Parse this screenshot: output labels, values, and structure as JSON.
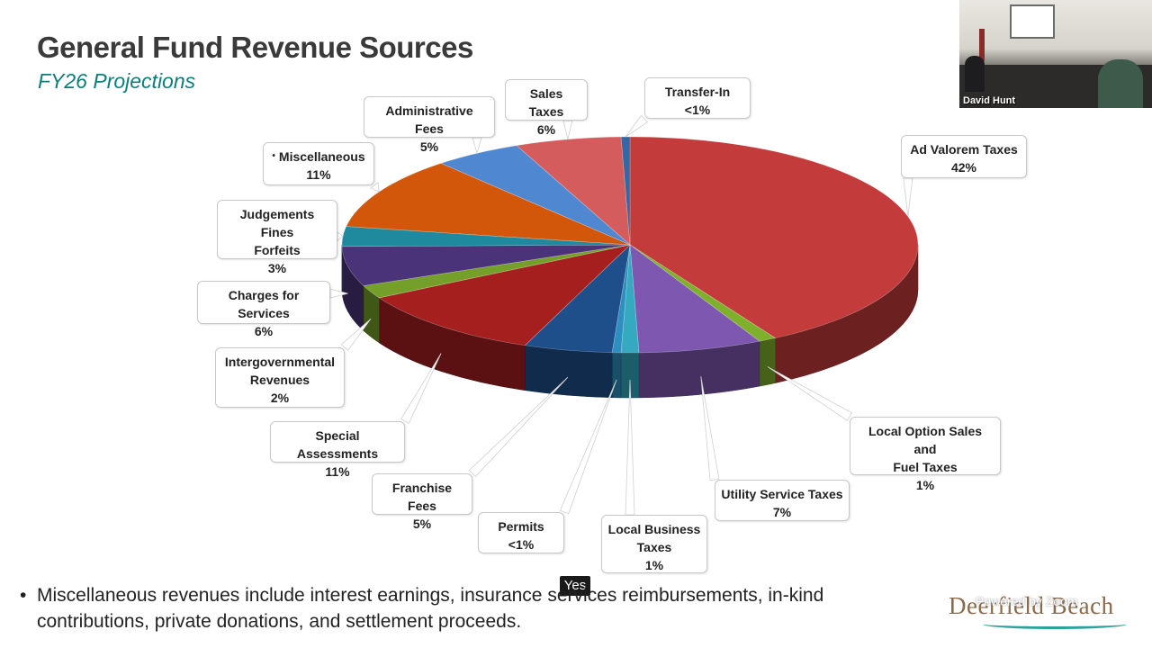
{
  "slide": {
    "title": "General Fund Revenue Sources",
    "subtitle": "FY26 Projections"
  },
  "chart_data": {
    "type": "pie",
    "style": "3d-exploded",
    "slices": [
      {
        "label": "Ad Valorem Taxes",
        "label_lines": [
          "Ad Valorem Taxes"
        ],
        "value": 42,
        "display": "42%",
        "color": "#c43b3b"
      },
      {
        "label": "Local Option Sales and Fuel Taxes",
        "label_lines": [
          "Local Option Sales and",
          "Fuel Taxes"
        ],
        "value": 1,
        "display": "1%",
        "color": "#7fb02c"
      },
      {
        "label": "Utility Service Taxes",
        "label_lines": [
          "Utility Service Taxes"
        ],
        "value": 7,
        "display": "7%",
        "color": "#7d57b0"
      },
      {
        "label": "Local Business Taxes",
        "label_lines": [
          "Local Business",
          "Taxes"
        ],
        "value": 1,
        "display": "1%",
        "color": "#35a9c0"
      },
      {
        "label": "Permits",
        "label_lines": [
          "Permits"
        ],
        "value": 0.5,
        "display": "<1%",
        "color": "#2c8fbf"
      },
      {
        "label": "Franchise Fees",
        "label_lines": [
          "Franchise Fees"
        ],
        "value": 5,
        "display": "5%",
        "color": "#1e4f8a"
      },
      {
        "label": "Special Assessments",
        "label_lines": [
          "Special Assessments"
        ],
        "value": 11,
        "display": "11%",
        "color": "#a61f1f"
      },
      {
        "label": "Intergovernmental Revenues",
        "label_lines": [
          "Intergovernmental",
          "Revenues"
        ],
        "value": 2,
        "display": "2%",
        "color": "#74a02a"
      },
      {
        "label": "Charges for Services",
        "label_lines": [
          "Charges for Services"
        ],
        "value": 6,
        "display": "6%",
        "color": "#4b3379"
      },
      {
        "label": "Judgements Fines Forfeits",
        "label_lines": [
          "Judgements Fines",
          "Forfeits"
        ],
        "value": 3,
        "display": "3%",
        "color": "#1f8a9e"
      },
      {
        "label": "Miscellaneous",
        "label_lines": [
          "Miscellaneous"
        ],
        "value": 11,
        "display": "11%",
        "color": "#d2570a",
        "marker": "•"
      },
      {
        "label": "Administrative Fees",
        "label_lines": [
          "Administrative Fees"
        ],
        "value": 5,
        "display": "5%",
        "color": "#4f87d0"
      },
      {
        "label": "Sales Taxes",
        "label_lines": [
          "Sales Taxes"
        ],
        "value": 6,
        "display": "6%",
        "color": "#d45c5c"
      },
      {
        "label": "Transfer-In",
        "label_lines": [
          "Transfer-In"
        ],
        "value": 0.5,
        "display": "<1%",
        "color": "#3566a5"
      }
    ]
  },
  "footnote": {
    "bullet": "•",
    "text": "Miscellaneous revenues include interest earnings, insurance services reimbursements, in-kind contributions, private donations, and settlement proceeds."
  },
  "badge": {
    "text": "Yes"
  },
  "video": {
    "participant_name": "David Hunt"
  },
  "logo": {
    "name": "Deerfield Beach",
    "overlay": "Powered by Zoom"
  }
}
